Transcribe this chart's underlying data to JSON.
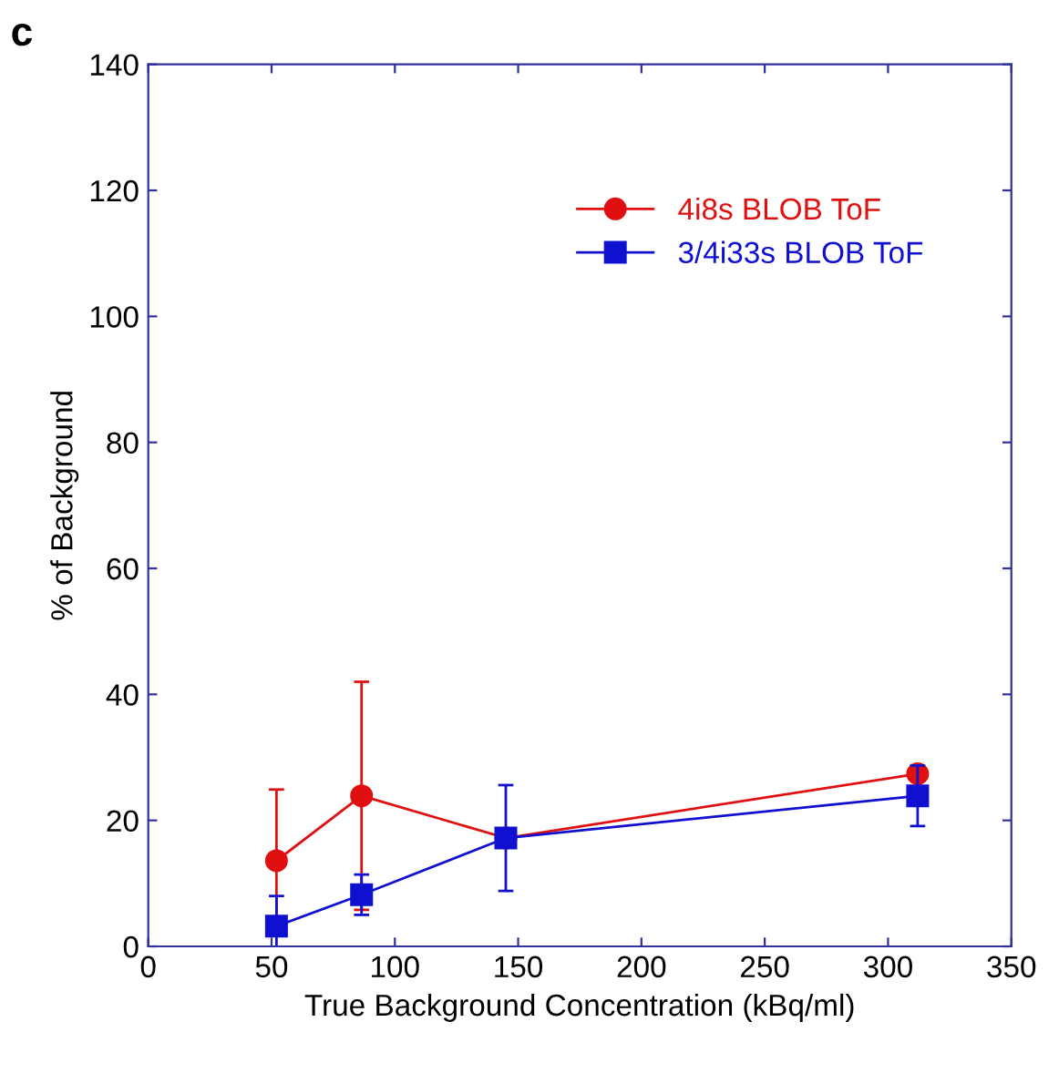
{
  "chart_data": {
    "type": "line",
    "xlabel": "True Background Concentration (kBq/ml)",
    "ylabel": "% of Background",
    "annotations": [
      "c"
    ],
    "series": [
      {
        "name": "4i8s BLOB ToF",
        "color": "#e01010",
        "marker": "circle",
        "x": [
          52,
          86.5,
          145,
          312
        ],
        "values": [
          13.6,
          23.9,
          17.2,
          27.4
        ],
        "errors": [
          11.3,
          18.1,
          null,
          null
        ]
      },
      {
        "name": "3/4i33s BLOB ToF",
        "color": "#1010d0",
        "marker": "square",
        "x": [
          52,
          86.5,
          145,
          312
        ],
        "values": [
          3.2,
          8.2,
          17.2,
          23.9
        ],
        "errors": [
          4.8,
          3.2,
          8.4,
          4.8
        ]
      }
    ],
    "xlim": [
      0,
      350
    ],
    "xticks": [
      0,
      50,
      100,
      150,
      200,
      250,
      300,
      350
    ],
    "ylim": [
      0,
      140
    ],
    "yticks": [
      0,
      20,
      40,
      60,
      80,
      100,
      120,
      140
    ],
    "grid": false,
    "legend": "top right"
  }
}
